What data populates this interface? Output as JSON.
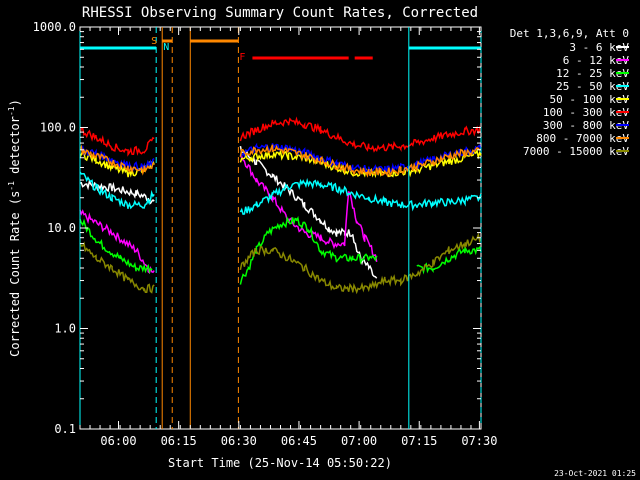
{
  "chart_data": {
    "type": "line",
    "title": "RHESSI Observing Summary Count Rates, Corrected",
    "xlabel": "Start Time (25-Nov-14 05:50:22)",
    "ylabel_main": "Corrected Count Rate (s",
    "ylabel_sup1": "-1",
    "ylabel_mid": " detector",
    "ylabel_sup2": "-1",
    "ylabel_end": ")",
    "yscale": "log",
    "ylim": [
      0.1,
      1000
    ],
    "xlim_minutes": [
      0,
      100
    ],
    "x_tick_labels": [
      "06:00",
      "06:15",
      "06:30",
      "06:45",
      "07:00",
      "07:15",
      "07:30"
    ],
    "x_tick_minutes": [
      9.6,
      24.6,
      39.6,
      54.6,
      69.6,
      84.6,
      99.6
    ],
    "y_tick_labels": [
      "0.1",
      "1.0",
      "10.0",
      "100.0",
      "1000.0"
    ],
    "y_tick_values": [
      0.1,
      1,
      10,
      100,
      1000
    ],
    "legend_title": "Det 1,3,6,9, Att 0",
    "legend_placement": "right",
    "series": [
      {
        "name": "3 - 6 keV",
        "color": "#ffffff",
        "segments": [
          {
            "x": [
              0,
              8,
              14,
              17,
              18.5
            ],
            "y": [
              28,
              25,
              22,
              20,
              18
            ]
          },
          {
            "x": [
              40,
              44,
              48,
              52,
              56,
              60,
              62,
              64,
              66,
              68,
              69,
              70,
              72,
              74
            ],
            "y": [
              60,
              45,
              33,
              24,
              17,
              12,
              10,
              9,
              9,
              9,
              6,
              5,
              4,
              3
            ]
          }
        ]
      },
      {
        "name": "6 - 12 keV",
        "color": "#ff00ff",
        "segments": [
          {
            "x": [
              0,
              8,
              14,
              17,
              18.5
            ],
            "y": [
              14,
              9,
              6,
              4,
              3.5
            ]
          },
          {
            "x": [
              40,
              44,
              48,
              52,
              56,
              60,
              63,
              66,
              67,
              69,
              71,
              74
            ],
            "y": [
              55,
              30,
              20,
              12,
              9,
              8,
              7,
              7,
              25,
              12,
              8,
              5
            ]
          }
        ]
      },
      {
        "name": "12 - 25 keV",
        "color": "#00ff00",
        "segments": [
          {
            "x": [
              0,
              5,
              10,
              14,
              18
            ],
            "y": [
              12,
              7,
              5,
              4,
              4
            ]
          },
          {
            "x": [
              40,
              42,
              44,
              47,
              50,
              54,
              57,
              60,
              64,
              68,
              72,
              74
            ],
            "y": [
              3,
              4,
              6,
              9,
              11,
              12,
              10,
              6,
              5,
              5,
              5,
              5
            ]
          },
          {
            "x": [
              84,
              88,
              92,
              96,
              100
            ],
            "y": [
              4,
              4,
              5,
              6,
              6
            ]
          }
        ]
      },
      {
        "name": "25 - 50 keV",
        "color": "#00ffff",
        "segments": [
          {
            "x": [
              0,
              4,
              8,
              12,
              16,
              18.5
            ],
            "y": [
              35,
              25,
              20,
              17,
              17,
              22
            ]
          },
          {
            "x": [
              40,
              44,
              48,
              52,
              56,
              60,
              64,
              68,
              72,
              76,
              80,
              84,
              88,
              92,
              96,
              100
            ],
            "y": [
              14,
              17,
              21,
              26,
              28,
              27,
              25,
              22,
              20,
              18,
              17,
              17,
              18,
              18,
              19,
              20
            ]
          }
        ]
      },
      {
        "name": "50 - 100 keV",
        "color": "#ffff00",
        "segments": [
          {
            "x": [
              0,
              4,
              8,
              12,
              16,
              18.5
            ],
            "y": [
              55,
              48,
              40,
              35,
              38,
              45
            ]
          },
          {
            "x": [
              40,
              44,
              48,
              52,
              56,
              60,
              64,
              68,
              72,
              76,
              80,
              84,
              88,
              92,
              96,
              100
            ],
            "y": [
              48,
              52,
              54,
              52,
              50,
              45,
              40,
              36,
              35,
              35,
              36,
              38,
              42,
              46,
              50,
              55
            ]
          }
        ]
      },
      {
        "name": "100 - 300 keV",
        "color": "#ff0000",
        "segments": [
          {
            "x": [
              0,
              4,
              8,
              12,
              16,
              18.5
            ],
            "y": [
              95,
              80,
              65,
              58,
              60,
              75
            ]
          },
          {
            "x": [
              40,
              44,
              48,
              52,
              56,
              60,
              64,
              68,
              72,
              76,
              80,
              84,
              88,
              92,
              96,
              100
            ],
            "y": [
              80,
              95,
              110,
              115,
              108,
              95,
              80,
              68,
              63,
              63,
              65,
              70,
              78,
              85,
              92,
              95
            ]
          }
        ]
      },
      {
        "name": "300 - 800 keV",
        "color": "#0000ff",
        "segments": [
          {
            "x": [
              0,
              4,
              8,
              12,
              16,
              18.5
            ],
            "y": [
              60,
              55,
              48,
              42,
              40,
              45
            ]
          },
          {
            "x": [
              40,
              44,
              48,
              52,
              56,
              60,
              64,
              68,
              72,
              76,
              80,
              84,
              88,
              92,
              96,
              100
            ],
            "y": [
              55,
              62,
              65,
              62,
              56,
              50,
              44,
              40,
              38,
              38,
              40,
              43,
              48,
              53,
              58,
              62
            ]
          }
        ]
      },
      {
        "name": "800 - 7000 keV",
        "color": "#ff8800",
        "segments": [
          {
            "x": [
              0,
              4,
              8,
              12,
              16,
              18.5
            ],
            "y": [
              60,
              52,
              45,
              40,
              38,
              42
            ]
          },
          {
            "x": [
              40,
              44,
              48,
              52,
              56,
              60,
              64,
              68,
              72,
              76,
              80,
              84,
              88,
              92,
              96,
              100
            ],
            "y": [
              55,
              60,
              62,
              58,
              53,
              47,
              42,
              38,
              36,
              36,
              38,
              41,
              46,
              52,
              56,
              58
            ]
          }
        ]
      },
      {
        "name": "7000 - 15000 keV",
        "color": "#888800",
        "segments": [
          {
            "x": [
              0,
              4,
              8,
              12,
              16,
              18.5
            ],
            "y": [
              7,
              5,
              4,
              3,
              2.5,
              2.5
            ]
          },
          {
            "x": [
              40,
              42,
              44,
              48,
              52,
              56,
              60,
              64,
              68,
              72,
              76,
              80,
              84,
              88,
              92,
              96,
              100
            ],
            "y": [
              4,
              5,
              6,
              6,
              5,
              4,
              3,
              2.5,
              2.5,
              2.5,
              3,
              3,
              3.5,
              4.5,
              6,
              7,
              8
            ]
          }
        ]
      }
    ],
    "annotations": {
      "orange_verticals_solid_minutes": [
        20.5,
        27.5
      ],
      "orange_verticals_dashed_minutes": [
        23,
        39.5
      ],
      "cyan_verticals_solid_minutes": [
        0,
        82
      ],
      "cyan_verticals_dashed_minutes": [
        19,
        100
      ],
      "cyan_flag_segments_minutes": [
        [
          0,
          19
        ],
        [
          82,
          100
        ]
      ],
      "orange_flag_segments_minutes": [
        [
          20.5,
          23
        ],
        [
          27.5,
          39.5
        ]
      ],
      "red_flag_segments_minutes": [
        [
          43,
          67
        ],
        [
          68.5,
          73
        ]
      ],
      "flag_labels": {
        "S": "S",
        "N": "N",
        "F": "F"
      }
    }
  },
  "footer_date": "23-Oct-2021 01:25"
}
